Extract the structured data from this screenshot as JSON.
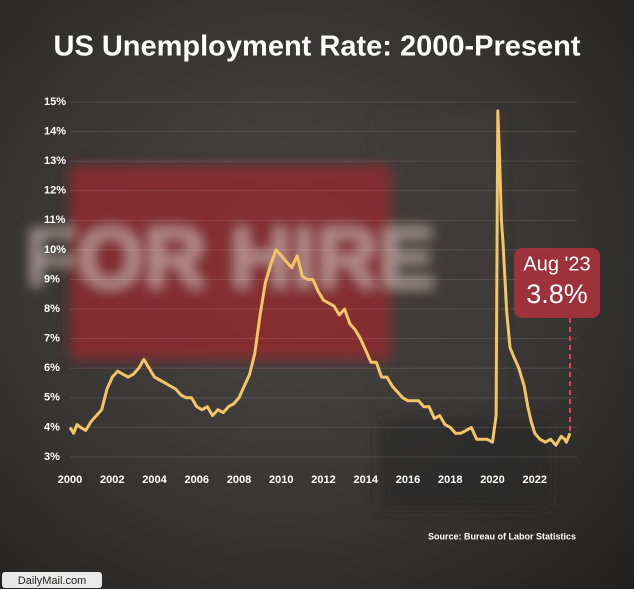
{
  "background": {
    "sign": "FOR HIRE"
  },
  "chart_data": {
    "type": "line",
    "title": "US Unemployment Rate:  2000-Present",
    "source": "Source: Bureau of Labor Statistics",
    "credit": "DailyMail.com",
    "annotation": {
      "date": "Aug '23",
      "value": "3.8%"
    },
    "color": "#f3c566",
    "x": [
      2000,
      2000.17,
      2000.33,
      2000.5,
      2000.75,
      2001,
      2001.25,
      2001.5,
      2001.75,
      2002,
      2002.25,
      2002.5,
      2002.75,
      2003,
      2003.25,
      2003.5,
      2003.75,
      2004,
      2004.25,
      2004.5,
      2004.75,
      2005,
      2005.25,
      2005.5,
      2005.75,
      2006,
      2006.25,
      2006.5,
      2006.75,
      2007,
      2007.25,
      2007.5,
      2007.75,
      2008,
      2008.25,
      2008.5,
      2008.75,
      2009,
      2009.25,
      2009.5,
      2009.75,
      2010,
      2010.25,
      2010.5,
      2010.75,
      2011,
      2011.25,
      2011.5,
      2011.75,
      2012,
      2012.25,
      2012.5,
      2012.75,
      2013,
      2013.25,
      2013.5,
      2013.75,
      2014,
      2014.25,
      2014.5,
      2014.75,
      2015,
      2015.25,
      2015.5,
      2015.75,
      2016,
      2016.25,
      2016.5,
      2016.75,
      2017,
      2017.25,
      2017.5,
      2017.75,
      2018,
      2018.25,
      2018.5,
      2018.75,
      2019,
      2019.25,
      2019.5,
      2019.75,
      2020,
      2020.17,
      2020.25,
      2020.33,
      2020.42,
      2020.5,
      2020.67,
      2020.83,
      2021,
      2021.25,
      2021.5,
      2021.67,
      2021.83,
      2022,
      2022.25,
      2022.5,
      2022.75,
      2023,
      2023.25,
      2023.42,
      2023.5,
      2023.67
    ],
    "values": [
      4.0,
      3.8,
      4.1,
      4.0,
      3.9,
      4.2,
      4.4,
      4.6,
      5.3,
      5.7,
      5.9,
      5.8,
      5.7,
      5.8,
      6.0,
      6.3,
      6.0,
      5.7,
      5.6,
      5.5,
      5.4,
      5.3,
      5.1,
      5.0,
      5.0,
      4.7,
      4.6,
      4.7,
      4.4,
      4.6,
      4.5,
      4.7,
      4.8,
      5.0,
      5.4,
      5.8,
      6.5,
      7.8,
      8.9,
      9.5,
      10.0,
      9.8,
      9.6,
      9.4,
      9.8,
      9.1,
      9.0,
      9.0,
      8.6,
      8.3,
      8.2,
      8.1,
      7.8,
      8.0,
      7.5,
      7.3,
      7.0,
      6.6,
      6.2,
      6.2,
      5.7,
      5.7,
      5.4,
      5.2,
      5.0,
      4.9,
      4.9,
      4.9,
      4.7,
      4.7,
      4.3,
      4.4,
      4.1,
      4.0,
      3.8,
      3.8,
      3.9,
      4.0,
      3.6,
      3.6,
      3.6,
      3.5,
      4.4,
      14.7,
      13.2,
      11.0,
      10.2,
      7.9,
      6.7,
      6.4,
      6.0,
      5.4,
      4.7,
      4.2,
      3.8,
      3.6,
      3.5,
      3.6,
      3.4,
      3.7,
      3.6,
      3.5,
      3.8
    ],
    "xlim": [
      2000,
      2024
    ],
    "xticks": [
      2000,
      2002,
      2004,
      2006,
      2008,
      2010,
      2012,
      2014,
      2016,
      2018,
      2020,
      2022
    ],
    "ylim": [
      3,
      15
    ],
    "yticks": [
      {
        "value": 3,
        "label": "3%"
      },
      {
        "value": 4,
        "label": "4%"
      },
      {
        "value": 5,
        "label": "5%"
      },
      {
        "value": 6,
        "label": "6%"
      },
      {
        "value": 7,
        "label": "7%"
      },
      {
        "value": 8,
        "label": "8%"
      },
      {
        "value": 9,
        "label": "9%"
      },
      {
        "value": 10,
        "label": "10%"
      },
      {
        "value": 11,
        "label": "11%"
      },
      {
        "value": 12,
        "label": "12%"
      },
      {
        "value": 13,
        "label": "13%"
      },
      {
        "value": 14,
        "label": "14%"
      },
      {
        "value": 15,
        "label": "15%"
      }
    ],
    "grid": true
  }
}
